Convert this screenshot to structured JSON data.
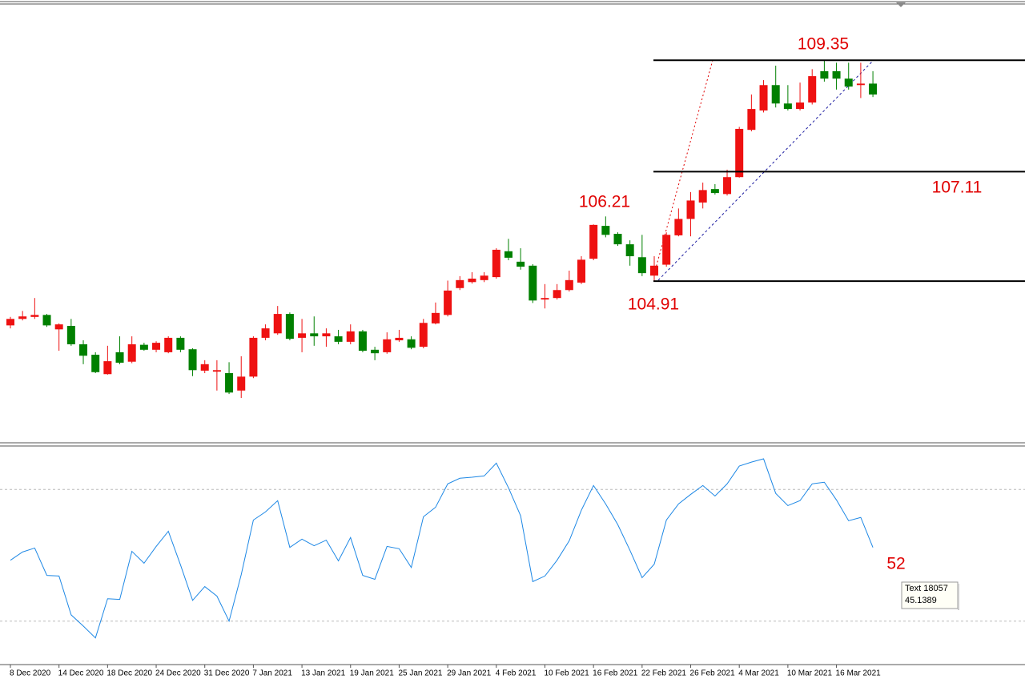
{
  "chart_data": [
    {
      "type": "candlestick",
      "categories": [
        "8 Dec 2020",
        null,
        null,
        null,
        "14 Dec 2020",
        null,
        null,
        null,
        "18 Dec 2020",
        null,
        null,
        null,
        "24 Dec 2020",
        null,
        null,
        null,
        "31 Dec 2020",
        null,
        null,
        null,
        "7 Jan 2021",
        null,
        null,
        null,
        "13 Jan 2021",
        null,
        null,
        null,
        "19 Jan 2021",
        null,
        null,
        null,
        "25 Jan 2021",
        null,
        null,
        null,
        "29 Jan 2021",
        null,
        null,
        null,
        "4 Feb 2021",
        null,
        null,
        null,
        "10 Feb 2021",
        null,
        null,
        null,
        "16 Feb 2021",
        null,
        null,
        null,
        "22 Feb 2021",
        null,
        null,
        null,
        "26 Feb 2021",
        null,
        null,
        null,
        "4 Mar 2021",
        null,
        null,
        null,
        "10 Mar 2021",
        null,
        null,
        null,
        "16 Mar 2021",
        null,
        null,
        null
      ],
      "open": [
        104.02,
        104.15,
        104.19,
        104.23,
        103.94,
        104.01,
        103.64,
        103.43,
        103.04,
        103.48,
        103.29,
        103.63,
        103.53,
        103.48,
        103.77,
        103.54,
        103.11,
        103.09,
        103.06,
        102.71,
        102.99,
        103.77,
        103.86,
        104.25,
        103.77,
        103.86,
        103.8,
        103.8,
        103.69,
        103.9,
        103.53,
        103.48,
        103.72,
        103.74,
        103.59,
        104.06,
        104.23,
        104.77,
        104.89,
        104.93,
        104.99,
        105.51,
        105.3,
        105.22,
        104.54,
        104.57,
        104.73,
        104.88,
        105.36,
        106.02,
        105.86,
        105.65,
        105.39,
        105.02,
        105.24,
        105.83,
        106.16,
        106.49,
        106.76,
        106.66,
        107.0,
        107.95,
        108.34,
        108.85,
        108.48,
        108.37,
        108.5,
        109.13,
        109.13,
        108.98,
        108.85,
        108.88
      ],
      "high": [
        104.19,
        104.31,
        104.57,
        104.25,
        104.06,
        104.15,
        103.72,
        103.48,
        103.61,
        103.8,
        103.8,
        103.67,
        103.7,
        103.8,
        103.8,
        103.56,
        103.32,
        103.32,
        103.28,
        103.4,
        103.8,
        104.04,
        104.41,
        104.28,
        104.15,
        104.2,
        103.96,
        103.93,
        104.04,
        103.93,
        103.59,
        103.88,
        103.93,
        103.8,
        104.15,
        104.48,
        104.92,
        105.01,
        105.09,
        105.09,
        105.57,
        105.76,
        105.57,
        105.25,
        104.85,
        104.85,
        105.12,
        105.41,
        106.05,
        106.21,
        105.89,
        105.73,
        105.84,
        105.41,
        105.89,
        106.37,
        106.7,
        106.89,
        106.86,
        107.15,
        108.01,
        108.66,
        108.95,
        109.24,
        108.85,
        108.9,
        109.17,
        109.35,
        109.3,
        109.3,
        109.3,
        109.13
      ],
      "low": [
        103.96,
        104.12,
        104.15,
        103.99,
        103.51,
        103.61,
        103.24,
        103.06,
        103.03,
        103.24,
        103.26,
        103.51,
        103.48,
        103.46,
        103.48,
        103.0,
        103.06,
        102.71,
        102.64,
        102.56,
        102.96,
        103.72,
        103.83,
        103.72,
        103.48,
        103.61,
        103.59,
        103.64,
        103.64,
        103.48,
        103.32,
        103.45,
        103.69,
        103.54,
        103.56,
        104.04,
        104.2,
        104.73,
        104.86,
        104.89,
        104.96,
        105.33,
        105.14,
        104.47,
        104.36,
        104.54,
        104.7,
        104.85,
        105.33,
        105.79,
        105.62,
        105.22,
        105.01,
        104.91,
        105.2,
        105.81,
        105.81,
        106.37,
        106.65,
        106.63,
        106.99,
        107.92,
        108.3,
        108.4,
        108.34,
        108.34,
        108.46,
        108.92,
        108.76,
        108.76,
        108.59,
        108.61
      ],
      "close": [
        104.15,
        104.2,
        104.23,
        104.02,
        104.04,
        103.64,
        103.41,
        103.08,
        103.3,
        103.27,
        103.64,
        103.53,
        103.67,
        103.77,
        103.53,
        103.12,
        103.24,
        103.12,
        102.67,
        102.99,
        103.77,
        103.96,
        104.25,
        103.75,
        103.86,
        103.8,
        103.86,
        103.69,
        103.9,
        103.51,
        103.46,
        103.74,
        103.77,
        103.57,
        104.07,
        104.27,
        104.72,
        104.93,
        104.96,
        105.02,
        105.54,
        105.38,
        105.2,
        104.52,
        104.57,
        104.73,
        104.93,
        105.34,
        106.04,
        105.84,
        105.65,
        105.41,
        105.07,
        105.22,
        105.84,
        106.16,
        106.53,
        106.74,
        106.68,
        107.0,
        107.97,
        108.37,
        108.85,
        108.48,
        108.37,
        108.5,
        109.03,
        108.98,
        108.98,
        108.82,
        108.88,
        108.66
      ],
      "up_color": "#ee1111",
      "down_color": "#008000",
      "ylim": [
        101.66,
        110.48
      ],
      "levels": [
        109.35,
        107.11,
        104.91
      ],
      "peak": 106.21
    },
    {
      "type": "line",
      "values": [
        48.5,
        51.0,
        52.2,
        43.9,
        43.7,
        31.9,
        28.5,
        24.9,
        36.8,
        36.6,
        51.2,
        47.6,
        52.7,
        57.3,
        47.1,
        36.3,
        40.5,
        37.6,
        30.0,
        44.1,
        60.7,
        63.2,
        66.6,
        52.4,
        54.9,
        52.9,
        54.6,
        48.3,
        55.4,
        43.9,
        42.7,
        52.7,
        52.0,
        46.3,
        61.7,
        64.6,
        71.7,
        73.4,
        73.7,
        74.1,
        78.0,
        70.5,
        62.0,
        42.0,
        43.7,
        48.5,
        54.4,
        63.7,
        71.2,
        65.6,
        59.3,
        51.5,
        43.2,
        47.3,
        60.7,
        65.6,
        68.5,
        71.2,
        68.0,
        71.7,
        77.1,
        78.3,
        79.3,
        68.8,
        65.1,
        66.6,
        71.7,
        72.2,
        66.8,
        60.5,
        61.5,
        52.4
      ],
      "color": "#1e88e5",
      "ylim": [
        16.8,
        83.2
      ],
      "levels": [
        70,
        30
      ],
      "annotation": "52",
      "tooltip": {
        "title": "Text 18057",
        "value": "45.1389"
      }
    }
  ]
}
